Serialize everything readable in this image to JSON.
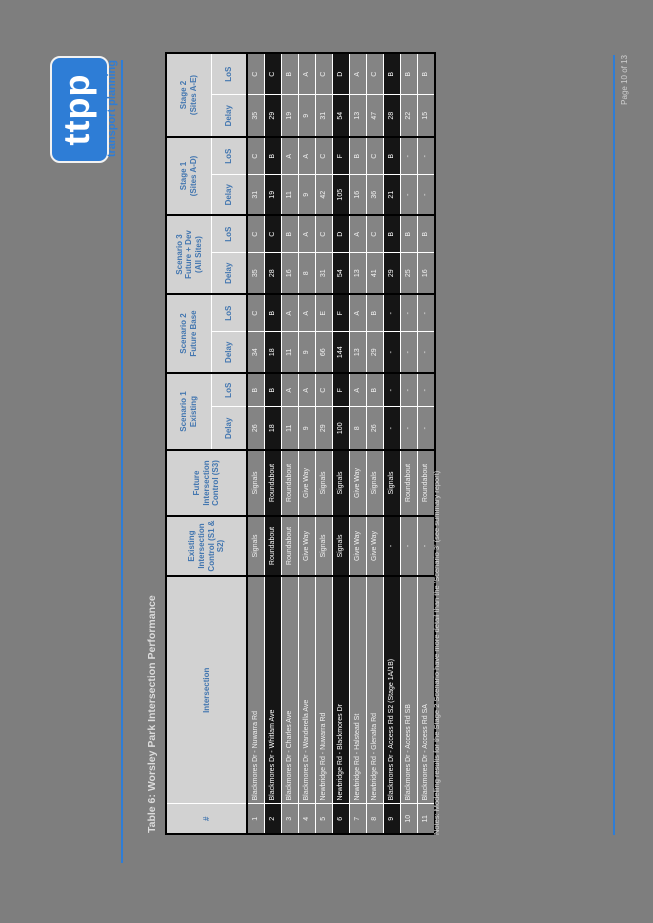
{
  "page": {
    "logo_text": "ttpp",
    "logo_tagline": "transport planning",
    "title": "Table 6: Worsley Park Intersection Performance",
    "note": "Notes: Modelling results for the Stage 2 Scenario have more detail than the 'Scenario 3' (see summary report)",
    "page_number": "Page 10 of 13"
  },
  "colors": {
    "page_background": "#7e7e7e",
    "brand_blue": "#2e7dd6",
    "header_cell": "#d2d2d2",
    "header_text_blue": "#4477b0",
    "row_light": "#848484",
    "row_dark": "#151515",
    "cell_text": "#f2f2f2"
  },
  "table": {
    "headers": {
      "num": "#",
      "intersection": "Intersection",
      "existing": "Existing\nIntersection\nControl (S1 & S2)",
      "future": "Future\nIntersection\nControl (S3)",
      "scenario1": "Scenario 1\nExisting",
      "scenario2": "Scenario 2\nFuture Base",
      "scenario3": "Scenario 3\nFuture + Dev\n(All Sites)",
      "stage1": "Stage 1\n(Sites A-D)",
      "stage2": "Stage 2\n(Sites A-E)",
      "delay": "Delay",
      "los": "LoS"
    },
    "rows": [
      {
        "num": "1",
        "name": "Blackmores Dr - Nuwarra Rd",
        "existing": "Signals",
        "future": "Signals",
        "s1_delay": "26",
        "s1_los": "B",
        "s2_delay": "34",
        "s2_los": "C",
        "s3_delay": "35",
        "s3_los": "C",
        "st1_delay": "31",
        "st1_los": "C",
        "st2_delay": "35",
        "st2_los": "C",
        "highlight": false
      },
      {
        "num": "2",
        "name": "Blackmores Dr - Whitlam Ave",
        "existing": "Roundabout",
        "future": "Roundabout",
        "s1_delay": "18",
        "s1_los": "B",
        "s2_delay": "18",
        "s2_los": "B",
        "s3_delay": "28",
        "s3_los": "C",
        "st1_delay": "19",
        "st1_los": "B",
        "st2_delay": "29",
        "st2_los": "C",
        "highlight": true
      },
      {
        "num": "3",
        "name": "Blackmores Dr - Charles Ave",
        "existing": "Roundabout",
        "future": "Roundabout",
        "s1_delay": "11",
        "s1_los": "A",
        "s2_delay": "11",
        "s2_los": "A",
        "s3_delay": "16",
        "s3_los": "B",
        "st1_delay": "11",
        "st1_los": "A",
        "st2_delay": "19",
        "st2_los": "B",
        "highlight": false
      },
      {
        "num": "4",
        "name": "Blackmores Dr - Wanderella Ave",
        "existing": "Give Way",
        "future": "Give Way",
        "s1_delay": "9",
        "s1_los": "A",
        "s2_delay": "9",
        "s2_los": "A",
        "s3_delay": "8",
        "s3_los": "A",
        "st1_delay": "9",
        "st1_los": "A",
        "st2_delay": "9",
        "st2_los": "A",
        "highlight": false
      },
      {
        "num": "5",
        "name": "Newbridge Rd - Nuwarra Rd",
        "existing": "Signals",
        "future": "Signals",
        "s1_delay": "29",
        "s1_los": "C",
        "s2_delay": "66",
        "s2_los": "E",
        "s3_delay": "31",
        "s3_los": "C",
        "st1_delay": "42",
        "st1_los": "C",
        "st2_delay": "31",
        "st2_los": "C",
        "highlight": false
      },
      {
        "num": "6",
        "name": "Newbridge Rd - Blackmores Dr",
        "existing": "Signals",
        "future": "Signals",
        "s1_delay": "100",
        "s1_los": "F",
        "s2_delay": "144",
        "s2_los": "F",
        "s3_delay": "54",
        "s3_los": "D",
        "st1_delay": "105",
        "st1_los": "F",
        "st2_delay": "54",
        "st2_los": "D",
        "highlight": true
      },
      {
        "num": "7",
        "name": "Newbridge Rd - Halstead St",
        "existing": "Give Way",
        "future": "Give Way",
        "s1_delay": "8",
        "s1_los": "A",
        "s2_delay": "13",
        "s2_los": "A",
        "s3_delay": "13",
        "s3_los": "A",
        "st1_delay": "16",
        "st1_los": "B",
        "st2_delay": "13",
        "st2_los": "A",
        "highlight": false
      },
      {
        "num": "8",
        "name": "Newbridge Rd - Glenalta Rd",
        "existing": "Give Way",
        "future": "Signals",
        "s1_delay": "26",
        "s1_los": "B",
        "s2_delay": "29",
        "s2_los": "B",
        "s3_delay": "41",
        "s3_los": "C",
        "st1_delay": "36",
        "st1_los": "C",
        "st2_delay": "47",
        "st2_los": "C",
        "highlight": false
      },
      {
        "num": "9",
        "name": "Blackmores Dr - Access Rd S2 (Stage 1A/1B)",
        "existing": "-",
        "future": "Signals",
        "s1_delay": "-",
        "s1_los": "-",
        "s2_delay": "-",
        "s2_los": "-",
        "s3_delay": "29",
        "s3_los": "B",
        "st1_delay": "21",
        "st1_los": "B",
        "st2_delay": "28",
        "st2_los": "B",
        "highlight": true
      },
      {
        "num": "10",
        "name": "Blackmores Dr - Access Rd SB",
        "existing": "-",
        "future": "Roundabout",
        "s1_delay": "-",
        "s1_los": "-",
        "s2_delay": "-",
        "s2_los": "-",
        "s3_delay": "25",
        "s3_los": "B",
        "st1_delay": "-",
        "st1_los": "-",
        "st2_delay": "22",
        "st2_los": "B",
        "highlight": false
      },
      {
        "num": "11",
        "name": "Blackmores Dr - Access Rd SA",
        "existing": "-",
        "future": "Roundabout",
        "s1_delay": "-",
        "s1_los": "-",
        "s2_delay": "-",
        "s2_los": "-",
        "s3_delay": "16",
        "s3_los": "B",
        "st1_delay": "-",
        "st1_los": "-",
        "st2_delay": "15",
        "st2_los": "B",
        "highlight": false
      }
    ]
  }
}
